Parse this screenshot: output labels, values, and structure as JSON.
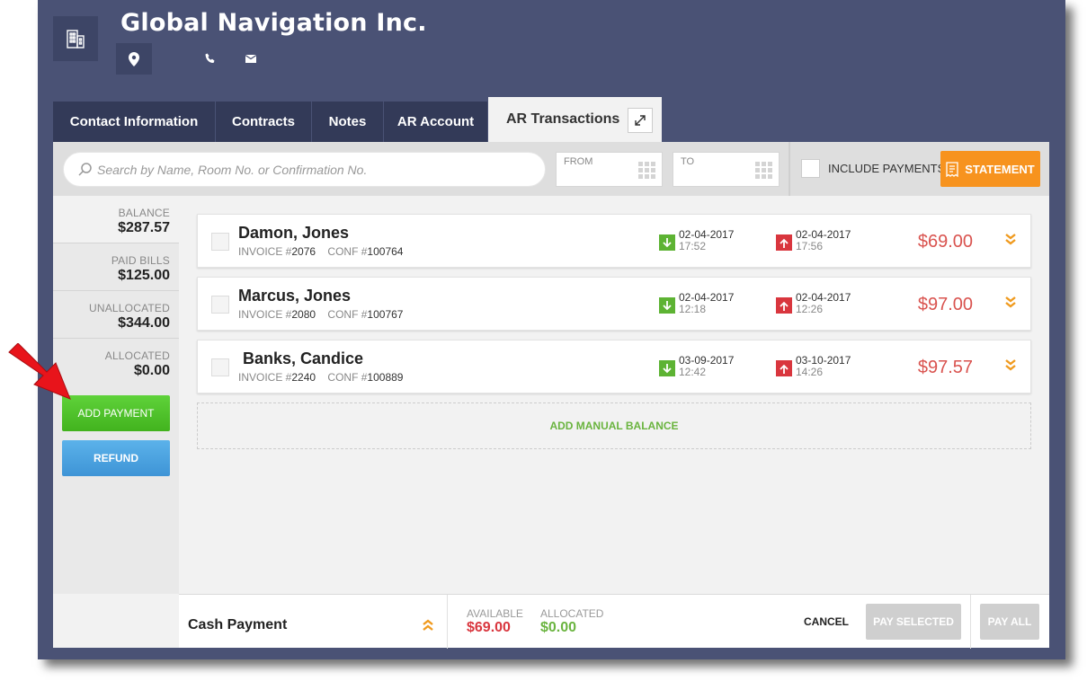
{
  "header": {
    "company": "Global Navigation Inc.",
    "icons": [
      "building-icon",
      "map-pin-icon",
      "phone-icon",
      "mail-icon"
    ]
  },
  "tabs": [
    {
      "label": "Contact Information"
    },
    {
      "label": "Contracts"
    },
    {
      "label": "Notes"
    },
    {
      "label": "AR Account"
    },
    {
      "label": "AR Transactions",
      "active": true
    }
  ],
  "search": {
    "placeholder": "Search by Name, Room No. or Confirmation No."
  },
  "date_filter": {
    "from_label": "FROM",
    "to_label": "TO"
  },
  "include_payments": {
    "label": "INCLUDE PAYMENTS",
    "checked": false
  },
  "statement_button": "STATEMENT",
  "summary": [
    {
      "label": "BALANCE",
      "value": "$287.57"
    },
    {
      "label": "PAID BILLS",
      "value": "$125.00"
    },
    {
      "label": "UNALLOCATED",
      "value": "$344.00"
    },
    {
      "label": "ALLOCATED",
      "value": "$0.00"
    }
  ],
  "buttons": {
    "add_payment": "ADD PAYMENT",
    "refund": "REFUND"
  },
  "invoice_prefix": "INVOICE #",
  "conf_prefix": "CONF #",
  "transactions": [
    {
      "name": "Damon, Jones",
      "invoice": "2076",
      "conf": "100764",
      "in_date": "02-04-2017",
      "in_time": "17:52",
      "out_date": "02-04-2017",
      "out_time": "17:56",
      "amount": "$69.00"
    },
    {
      "name": "Marcus, Jones",
      "invoice": "2080",
      "conf": "100767",
      "in_date": "02-04-2017",
      "in_time": "12:18",
      "out_date": "02-04-2017",
      "out_time": "12:26",
      "amount": "$97.00"
    },
    {
      "name": " Banks, Candice",
      "invoice": "2240",
      "conf": "100889",
      "in_date": "03-09-2017",
      "in_time": "12:42",
      "out_date": "03-10-2017",
      "out_time": "14:26",
      "amount": "$97.57"
    }
  ],
  "add_manual_balance": "ADD MANUAL BALANCE",
  "footer": {
    "payment_type": "Cash Payment",
    "available_label": "AVAILABLE",
    "available_value": "$69.00",
    "allocated_label": "ALLOCATED",
    "allocated_value": "$0.00",
    "cancel": "CANCEL",
    "pay_selected": "PAY SELECTED",
    "pay_all": "PAY ALL"
  },
  "colors": {
    "header_bg": "#4a5275",
    "tab_bg": "#333a58",
    "amount": "#d9534f",
    "statement": "#f7931e",
    "add_payment": "#4cc22a",
    "refund": "#4aa3e0",
    "pointer_arrow": "#e8141b"
  }
}
